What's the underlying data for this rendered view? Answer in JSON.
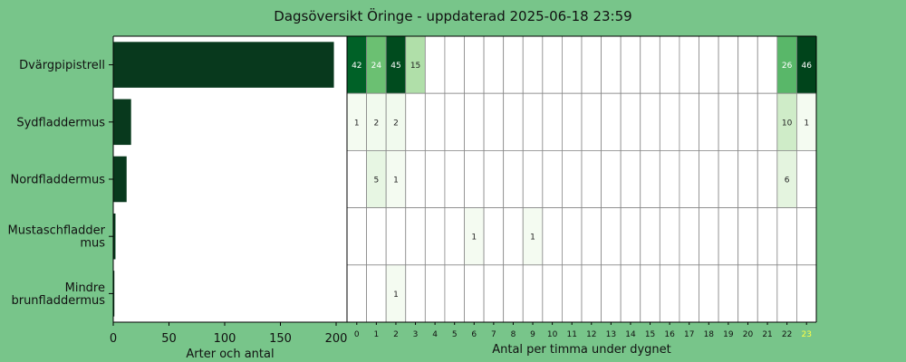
{
  "chart_data": {
    "type": "bar",
    "title": "Dagsöversikt Öringe - uppdaterad 2025-06-18 23:59",
    "species": [
      "Dvärgpipistrell",
      "Sydfladdermus",
      "Nordfladdermus",
      "Mustaschfladdermus",
      "Mindre brunfladdermus"
    ],
    "species_labels": [
      [
        "Dvärgpipistrell"
      ],
      [
        "Sydfladdermus"
      ],
      [
        "Nordfladdermus"
      ],
      [
        "Mustaschfladder",
        "mus"
      ],
      [
        "Mindre",
        "brunfladdermus"
      ]
    ],
    "totals": [
      198,
      16,
      12,
      2,
      1
    ],
    "xlabel": "Arter och antal",
    "xlim": [
      0,
      200
    ],
    "xticks": [
      0,
      50,
      100,
      150,
      200
    ],
    "bar_color": "#08391d",
    "heatmap": {
      "type": "heatmap",
      "xlabel": "Antal per timma under dygnet",
      "hours": [
        "0",
        "1",
        "2",
        "3",
        "4",
        "5",
        "6",
        "7",
        "8",
        "9",
        "10",
        "11",
        "12",
        "13",
        "14",
        "15",
        "16",
        "17",
        "18",
        "19",
        "20",
        "21",
        "22",
        "23"
      ],
      "highlight_hour_color": "#ffff44",
      "counts": [
        [
          42,
          24,
          45,
          15,
          0,
          0,
          0,
          0,
          0,
          0,
          0,
          0,
          0,
          0,
          0,
          0,
          0,
          0,
          0,
          0,
          0,
          0,
          26,
          46
        ],
        [
          1,
          2,
          2,
          0,
          0,
          0,
          0,
          0,
          0,
          0,
          0,
          0,
          0,
          0,
          0,
          0,
          0,
          0,
          0,
          0,
          0,
          0,
          10,
          1
        ],
        [
          0,
          5,
          1,
          0,
          0,
          0,
          0,
          0,
          0,
          0,
          0,
          0,
          0,
          0,
          0,
          0,
          0,
          0,
          0,
          0,
          0,
          0,
          6,
          0
        ],
        [
          0,
          0,
          0,
          0,
          0,
          0,
          1,
          0,
          0,
          1,
          0,
          0,
          0,
          0,
          0,
          0,
          0,
          0,
          0,
          0,
          0,
          0,
          0,
          0
        ],
        [
          0,
          0,
          1,
          0,
          0,
          0,
          0,
          0,
          0,
          0,
          0,
          0,
          0,
          0,
          0,
          0,
          0,
          0,
          0,
          0,
          0,
          0,
          0,
          0
        ]
      ]
    }
  }
}
